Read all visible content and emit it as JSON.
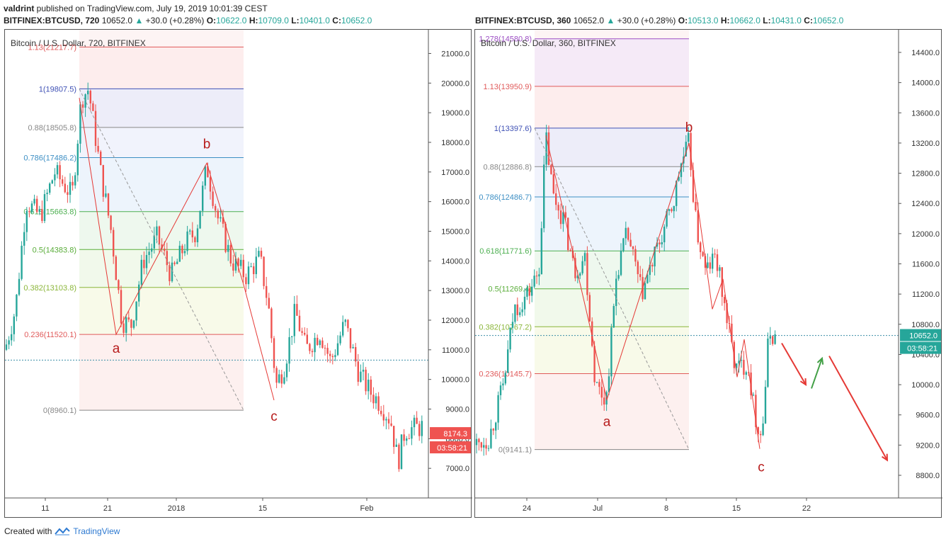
{
  "header": {
    "left_line1_user": "valdrint",
    "left_line1_text": " published on TradingView.com, July 19, 2019 10:01:39 CEST",
    "left_symbol": "BITFINEX:BTCUSD, 720",
    "left_price": "10652.0",
    "left_change": "+30.0 (+0.28%)",
    "left_o": "10622.0",
    "left_h": "10709.0",
    "left_l": "10401.0",
    "left_c": "10652.0",
    "right_symbol": "BITFINEX:BTCUSD, 360",
    "right_price": "10652.0",
    "right_change": "+30.0 (+0.28%)",
    "right_o": "10513.0",
    "right_h": "10662.0",
    "right_l": "10431.0",
    "right_c": "10652.0"
  },
  "footer": {
    "created_with": "Created with",
    "brand": "TradingView"
  },
  "chart_data": [
    {
      "type": "candlestick",
      "title": "Bitcoin / U.S. Dollar, 720, BITFINEX",
      "ylim": [
        6000,
        21800
      ],
      "y_ticks": [
        "7000.0",
        "8000.0",
        "9000.0",
        "10000.0",
        "11000.0",
        "12000.0",
        "13000.0",
        "14000.0",
        "15000.0",
        "16000.0",
        "17000.0",
        "18000.0",
        "19000.0",
        "20000.0",
        "21000.0"
      ],
      "x_ticks": [
        "11",
        "21",
        "2018",
        "15",
        "Feb"
      ],
      "fib_levels": [
        {
          "label": "1.13(21217.7)",
          "value": 21217.7,
          "color": "#e05a5a"
        },
        {
          "label": "1(19807.5)",
          "value": 19807.5,
          "color": "#3f51b5"
        },
        {
          "label": "0.88(18505.8)",
          "value": 18505.8,
          "color": "#888888"
        },
        {
          "label": "0.786(17486.2)",
          "value": 17486.2,
          "color": "#3d8fc4"
        },
        {
          "label": "0.618(15663.8)",
          "value": 15663.8,
          "color": "#4caf50"
        },
        {
          "label": "0.5(14383.8)",
          "value": 14383.8,
          "color": "#5aad3a"
        },
        {
          "label": "0.382(13103.8)",
          "value": 13103.8,
          "color": "#8bb63a"
        },
        {
          "label": "0.236(11520.1)",
          "value": 11520.1,
          "color": "#e05a5a"
        },
        {
          "label": "0(8960.1)",
          "value": 8960.1,
          "color": "#888888"
        }
      ],
      "wave_labels": [
        "a",
        "b",
        "c"
      ],
      "price_label": "8174.3",
      "timer_label": "03:58:21",
      "current_line": 10652.0
    },
    {
      "type": "candlestick",
      "title": "Bitcoin / U.S. Dollar, 360, BITFINEX",
      "ylim": [
        8500,
        14700
      ],
      "y_ticks": [
        "8800.0",
        "9200.0",
        "9600.0",
        "10000.0",
        "10400.0",
        "10800.0",
        "11200.0",
        "11600.0",
        "12000.0",
        "12400.0",
        "12800.0",
        "13200.0",
        "13600.0",
        "14000.0",
        "14400.0"
      ],
      "x_ticks": [
        "24",
        "Jul",
        "8",
        "15",
        "22"
      ],
      "fib_levels": [
        {
          "label": "1.278(14580.8)",
          "value": 14580.8,
          "color": "#9c4fc4"
        },
        {
          "label": "1.13(13950.9)",
          "value": 13950.9,
          "color": "#e05a5a"
        },
        {
          "label": "1(13397.6)",
          "value": 13397.6,
          "color": "#3f51b5"
        },
        {
          "label": "0.88(12886.8)",
          "value": 12886.8,
          "color": "#888888"
        },
        {
          "label": "0.786(12486.7)",
          "value": 12486.7,
          "color": "#3d8fc4"
        },
        {
          "label": "0.618(11771.6)",
          "value": 11771.6,
          "color": "#4caf50"
        },
        {
          "label": "0.5(11269.4)",
          "value": 11269.4,
          "color": "#5aad3a"
        },
        {
          "label": "0.382(10767.2)",
          "value": 10767.2,
          "color": "#8bb63a"
        },
        {
          "label": "0.236(10145.7)",
          "value": 10145.7,
          "color": "#e05a5a"
        },
        {
          "label": "0(9141.1)",
          "value": 9141.1,
          "color": "#888888"
        }
      ],
      "wave_labels": [
        "a",
        "b",
        "c"
      ],
      "price_label": "10652.0",
      "timer_label": "03:58:21",
      "current_line": 10652.0
    }
  ],
  "colors": {
    "up": "#26a69a",
    "down": "#ef5350",
    "wave": "#e53935",
    "wave_label": "#b71c1c",
    "forecast_down": "#e53935",
    "forecast_up": "#43a047"
  }
}
